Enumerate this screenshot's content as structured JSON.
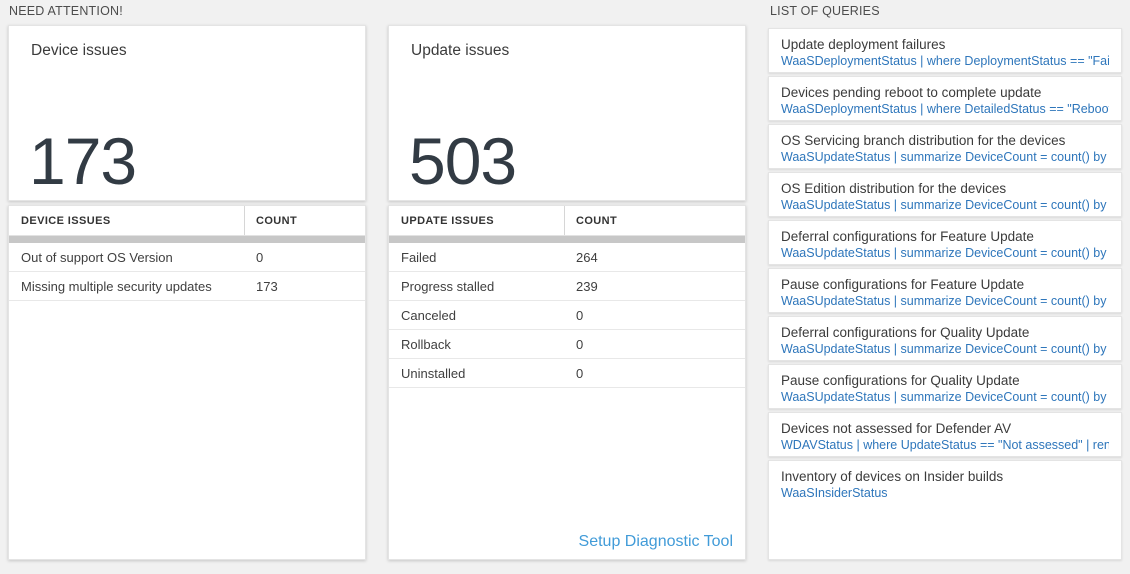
{
  "colors": {
    "page_background": "#f1f1f1",
    "panel_background": "#ffffff",
    "big_number_text": "#323b44",
    "query_text_blue": "#2e76bb",
    "link_blue": "#419bd8",
    "scrollbar_gray": "#c7c7c7"
  },
  "need_attention": {
    "section_title": "NEED ATTENTION!",
    "tiles": [
      {
        "title": "Device issues",
        "count": "173"
      },
      {
        "title": "Update issues",
        "count": "503"
      }
    ],
    "device_table": {
      "headers": [
        "DEVICE ISSUES",
        "COUNT"
      ],
      "rows": [
        [
          "Out of support OS Version",
          "0"
        ],
        [
          "Missing multiple security updates",
          "173"
        ]
      ]
    },
    "update_table": {
      "headers": [
        "UPDATE ISSUES",
        "COUNT"
      ],
      "rows": [
        [
          "Failed",
          "264"
        ],
        [
          "Progress stalled",
          "239"
        ],
        [
          "Canceled",
          "0"
        ],
        [
          "Rollback",
          "0"
        ],
        [
          "Uninstalled",
          "0"
        ]
      ],
      "footer_link": "Setup Diagnostic Tool"
    }
  },
  "queries": {
    "section_title": "LIST OF QUERIES",
    "items": [
      {
        "title": "Update deployment failures",
        "query": "WaaSDeploymentStatus | where DeploymentStatus == \"Failed\" |..."
      },
      {
        "title": "Devices pending reboot to complete update",
        "query": "WaaSDeploymentStatus | where DetailedStatus == \"Reboot pend..."
      },
      {
        "title": "OS Servicing branch distribution for the devices",
        "query": "WaaSUpdateStatus | summarize DeviceCount = count() by OSSer..."
      },
      {
        "title": "OS Edition distribution for the devices",
        "query": "WaaSUpdateStatus | summarize DeviceCount = count() by OSEdit..."
      },
      {
        "title": "Deferral configurations for Feature Update",
        "query": "WaaSUpdateStatus | summarize DeviceCount = count() by Featur..."
      },
      {
        "title": "Pause configurations for Feature Update",
        "query": "WaaSUpdateStatus | summarize DeviceCount = count() by Featur..."
      },
      {
        "title": "Deferral configurations for Quality Update",
        "query": "WaaSUpdateStatus | summarize DeviceCount = count() by Qualit..."
      },
      {
        "title": "Pause configurations for Quality Update",
        "query": "WaaSUpdateStatus | summarize DeviceCount = count() by Qualit..."
      },
      {
        "title": "Devices not assessed for Defender AV",
        "query": "WDAVStatus | where UpdateStatus == \"Not assessed\" | render ta..."
      },
      {
        "title": "Inventory of devices on Insider builds",
        "query": "WaaSInsiderStatus"
      }
    ]
  }
}
